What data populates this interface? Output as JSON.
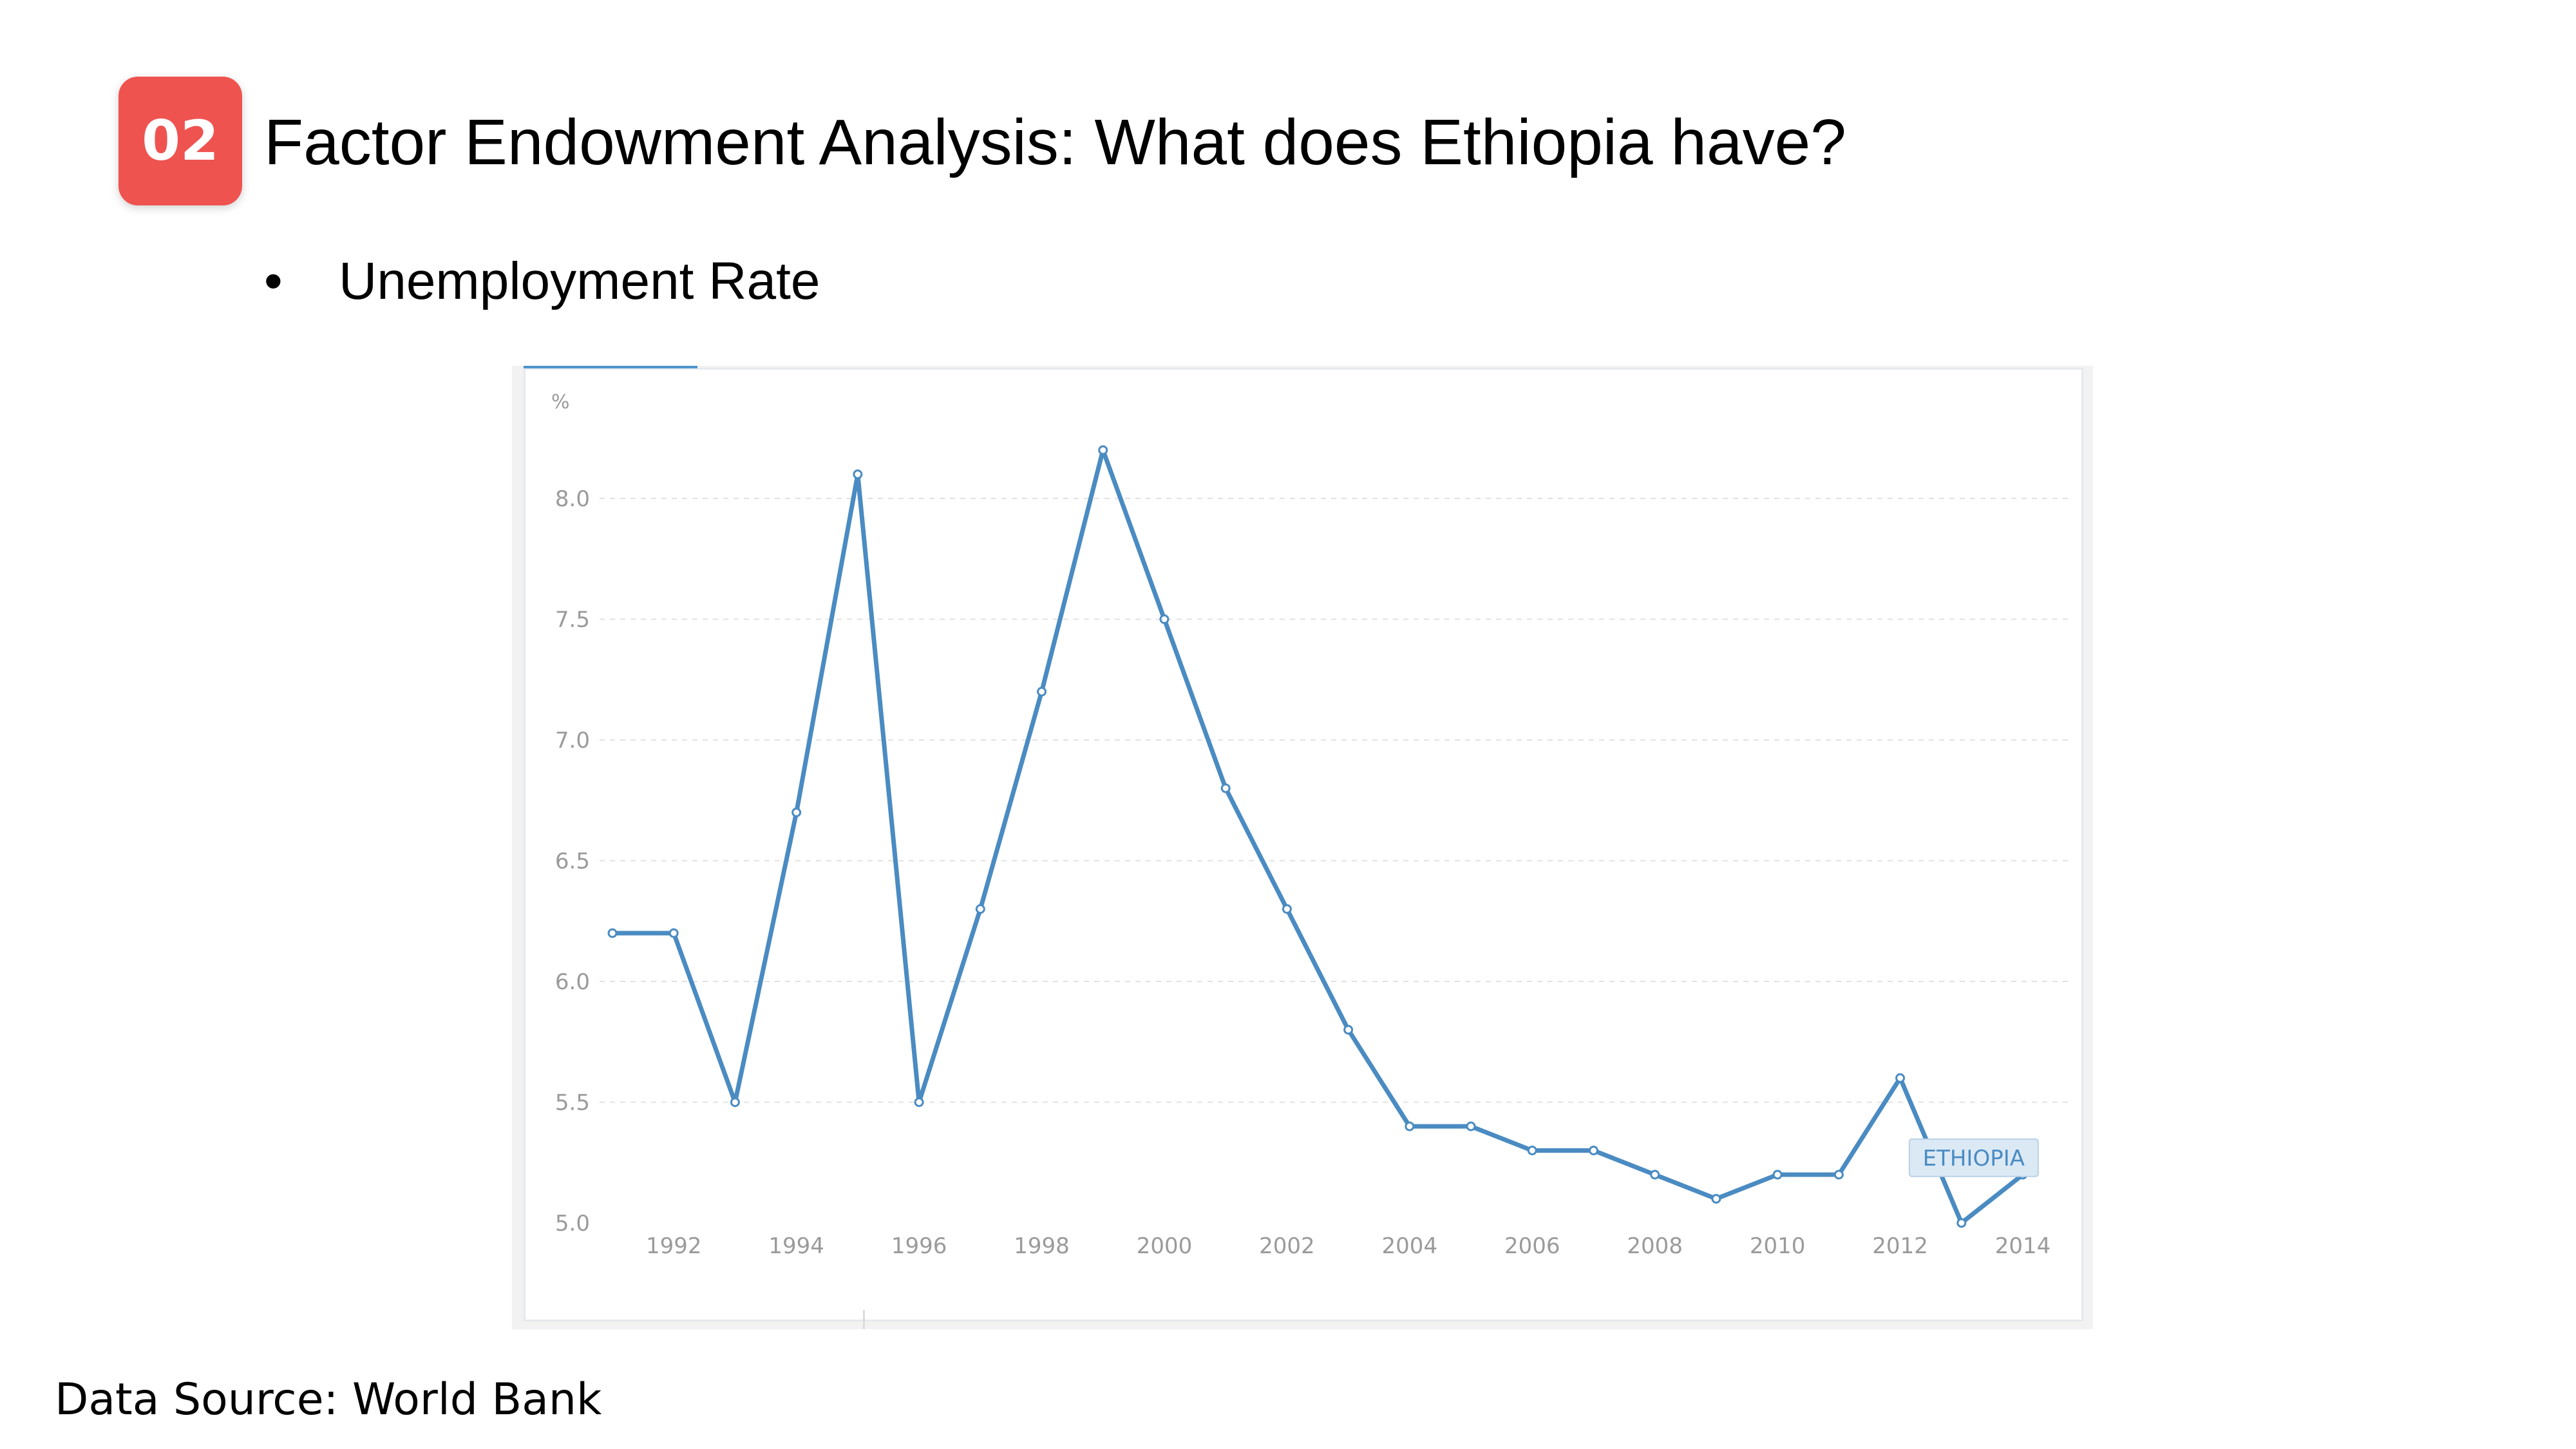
{
  "slide": {
    "badge_number": "02",
    "title": "Factor Endowment Analysis: What does Ethiopia have?",
    "bullet_symbol": "•",
    "bullet_text": "Unemployment Rate",
    "source": "Data Source: World Bank"
  },
  "colors": {
    "badge": "#ef5350",
    "line": "#4a8bc2",
    "grid": "#e2e2e2",
    "tick_text": "#9a9a9a",
    "label_fill": "#dbe9f5",
    "label_text": "#4a8bc2"
  },
  "chart_data": {
    "type": "line",
    "ylabel": "%",
    "ylim": [
      5.0,
      8.2
    ],
    "yticks": [
      "5.0",
      "5.5",
      "6.0",
      "6.5",
      "7.0",
      "7.5",
      "8.0"
    ],
    "xticks": [
      "1992",
      "1994",
      "1996",
      "1998",
      "2000",
      "2002",
      "2004",
      "2006",
      "2008",
      "2010",
      "2012",
      "2014"
    ],
    "grid": "horizontal dashed",
    "legend": "inline label near last point",
    "series": [
      {
        "name": "ETHIOPIA",
        "x": [
          1991,
          1992,
          1993,
          1994,
          1995,
          1996,
          1997,
          1998,
          1999,
          2000,
          2001,
          2002,
          2003,
          2004,
          2005,
          2006,
          2007,
          2008,
          2009,
          2010,
          2011,
          2012,
          2013,
          2014
        ],
        "y": [
          6.2,
          6.2,
          5.5,
          6.7,
          8.1,
          5.5,
          6.3,
          7.2,
          8.2,
          7.5,
          6.8,
          6.3,
          5.8,
          5.4,
          5.4,
          5.3,
          5.3,
          5.2,
          5.1,
          5.2,
          5.2,
          5.6,
          5.0,
          5.2
        ]
      }
    ]
  }
}
